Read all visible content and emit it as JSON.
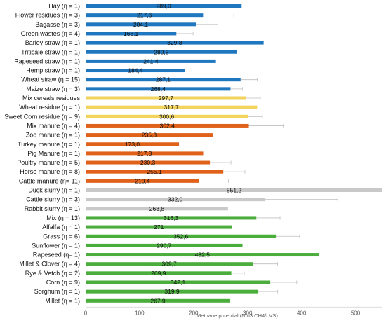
{
  "chart_data": {
    "type": "bar",
    "orientation": "horizontal",
    "xlabel": "Methane potential (Nm3 CH4/t VS)",
    "xlim": [
      0,
      550
    ],
    "xticks": [
      "0",
      "100",
      "200",
      "300",
      "400",
      "500"
    ],
    "tick_values": [
      0,
      100,
      200,
      300,
      400,
      500
    ],
    "grid": false,
    "legend": "none",
    "group_colors": {
      "straw": "#1f77c0",
      "residues": "#f2d45c",
      "manure": "#e0621a",
      "slurry": "#c9c9c9",
      "crops": "#4aad3c"
    },
    "bars": [
      {
        "category": "Hay (η = 1)",
        "value": 289.0,
        "label": "289,0",
        "group": "straw"
      },
      {
        "category": "Flower residues (η = 3)",
        "value": 217.6,
        "label": "217,6",
        "group": "straw",
        "error": 57
      },
      {
        "category": "Bagasse  (η = 3)",
        "value": 204.1,
        "label": "204,1",
        "group": "straw",
        "error": 41
      },
      {
        "category": "Green wastes (η = 4)",
        "value": 168.1,
        "label": "168,1",
        "group": "straw",
        "error": 31
      },
      {
        "category": "Barley straw (η = 1)",
        "value": 329.8,
        "label": "329,8",
        "group": "straw"
      },
      {
        "category": "Triticale straw (η = 1)",
        "value": 280.5,
        "label": "280,5",
        "group": "straw"
      },
      {
        "category": "Rapeseed straw (η = 1)",
        "value": 241.4,
        "label": "241,4",
        "group": "straw"
      },
      {
        "category": "Hemp straw (η = 1)",
        "value": 184.4,
        "label": "184,4",
        "group": "straw"
      },
      {
        "category": "Wheat straw (η = 15)",
        "value": 287.1,
        "label": "287,1",
        "group": "straw",
        "error": 31
      },
      {
        "category": "Maize straw (η = 3)",
        "value": 268.4,
        "label": "268,4",
        "group": "straw",
        "error": 22
      },
      {
        "category": "Mix cereals residues",
        "value": 297.7,
        "label": "297,7",
        "group": "residues",
        "error": 26
      },
      {
        "category": "Wheat residue (η = 1)",
        "value": 317.7,
        "label": "317,7",
        "group": "residues"
      },
      {
        "category": "Sweet Corn residue (η = 9)",
        "value": 300.6,
        "label": "300,6",
        "group": "residues",
        "error": 27
      },
      {
        "category": "Mix manure (η = 4)",
        "value": 302.4,
        "label": "302,4",
        "group": "manure",
        "error": 64
      },
      {
        "category": "Zoo manure (η = 1)",
        "value": 235.3,
        "label": "235,3",
        "group": "manure"
      },
      {
        "category": "Turkey manure (η = 1)",
        "value": 173.0,
        "label": "173,0",
        "group": "manure"
      },
      {
        "category": "Pig Manure (η = 1)",
        "value": 217.8,
        "label": "217,8",
        "group": "manure"
      },
      {
        "category": "Poultry manure (η = 5)",
        "value": 230.3,
        "label": "230,3",
        "group": "manure",
        "error": 39
      },
      {
        "category": "Horse manure (η = 8)",
        "value": 255.1,
        "label": "255,1",
        "group": "manure",
        "error": 40
      },
      {
        "category": "Cattle manure (η= 11)",
        "value": 210.4,
        "label": "210,4",
        "group": "manure",
        "error": 54
      },
      {
        "category": "Duck slurry (η = 1)",
        "value": 551.2,
        "label": "551,2",
        "group": "slurry"
      },
      {
        "category": "Cattle slurry (η = 3)",
        "value": 332.0,
        "label": "332,0",
        "group": "slurry",
        "error": 135
      },
      {
        "category": "Rabbit slurry (η = 1)",
        "value": 263.8,
        "label": "263,8",
        "group": "slurry"
      },
      {
        "category": "Mix (η = 13)",
        "value": 316.3,
        "label": "316,3",
        "group": "crops",
        "error": 44
      },
      {
        "category": "Alfalfa (η = 1)",
        "value": 271.0,
        "label": "271",
        "group": "crops"
      },
      {
        "category": "Grass (η = 6)",
        "value": 352.6,
        "label": "352,6",
        "group": "crops",
        "error": 44
      },
      {
        "category": "Sunflower (η = 1)",
        "value": 290.7,
        "label": "290,7",
        "group": "crops"
      },
      {
        "category": "Rapeseed (η= 1)",
        "value": 432.5,
        "label": "432,5",
        "group": "crops"
      },
      {
        "category": "Millet & Clover (η = 4)",
        "value": 309.7,
        "label": "309,7",
        "group": "crops",
        "error": 46
      },
      {
        "category": "Rye & Vetch (η = 2)",
        "value": 269.9,
        "label": "269,9",
        "group": "crops",
        "error": 24
      },
      {
        "category": "Corn (η = 9)",
        "value": 342.1,
        "label": "342,1",
        "group": "crops",
        "error": 49
      },
      {
        "category": "Sorghum (η = 1)",
        "value": 319.9,
        "label": "319,9",
        "group": "crops",
        "error": 36
      },
      {
        "category": "Millet (η = 1)",
        "value": 267.9,
        "label": "267,9",
        "group": "crops"
      }
    ]
  }
}
